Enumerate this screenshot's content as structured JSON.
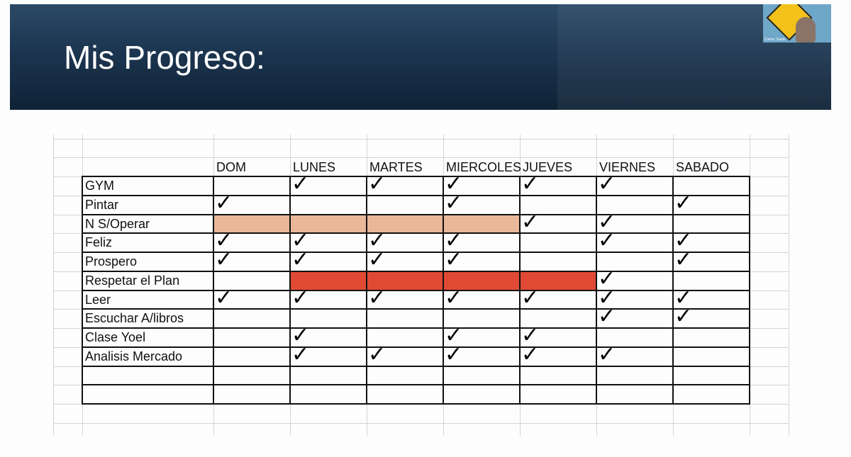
{
  "header": {
    "title": "Mis Progreso:"
  },
  "webcam": {
    "name": "Carlos Tirado"
  },
  "table": {
    "columns": [
      "DOM",
      "LUNES",
      "MARTES",
      "MIERCOLES",
      "JUEVES",
      "VIERNES",
      "SABADO"
    ],
    "check_color": "#000000",
    "rows": [
      {
        "label": "GYM",
        "cells": [
          null,
          "✓",
          "✓",
          "✓",
          "✓",
          "✓",
          null
        ]
      },
      {
        "label": "Pintar",
        "cells": [
          "✓",
          null,
          null,
          "✓",
          null,
          null,
          "✓"
        ]
      },
      {
        "label": "N S/Operar",
        "cells": [
          null,
          null,
          null,
          null,
          "✓",
          "✓",
          null
        ],
        "fills": [
          "#e8b898",
          "#e8b898",
          "#e8b898",
          "#e8b898",
          null,
          null,
          null
        ]
      },
      {
        "label": "Feliz",
        "cells": [
          "✓",
          "✓",
          "✓",
          "✓",
          null,
          "✓",
          "✓"
        ]
      },
      {
        "label": "Prospero",
        "cells": [
          "✓",
          "✓",
          "✓",
          "✓",
          null,
          null,
          "✓"
        ]
      },
      {
        "label": "Respetar el Plan",
        "cells": [
          null,
          null,
          null,
          null,
          null,
          "✓",
          null
        ],
        "fills": [
          null,
          "#e04a35",
          "#e04a35",
          "#e04a35",
          "#e04a35",
          null,
          null
        ]
      },
      {
        "label": "Leer",
        "cells": [
          "✓",
          "✓",
          "✓",
          "✓",
          "✓",
          "✓",
          "✓"
        ]
      },
      {
        "label": "Escuchar A/libros",
        "cells": [
          null,
          null,
          null,
          null,
          null,
          "✓",
          "✓"
        ]
      },
      {
        "label": "Clase Yoel",
        "cells": [
          null,
          "✓",
          null,
          "✓",
          "✓",
          null,
          null
        ]
      },
      {
        "label": "Analisis Mercado",
        "cells": [
          null,
          "✓",
          "✓",
          "✓",
          "✓",
          "✓",
          null
        ]
      },
      {
        "label": null,
        "cells": [
          null,
          null,
          null,
          null,
          null,
          null,
          null
        ]
      },
      {
        "label": null,
        "cells": [
          null,
          null,
          null,
          null,
          null,
          null,
          null
        ]
      }
    ]
  }
}
